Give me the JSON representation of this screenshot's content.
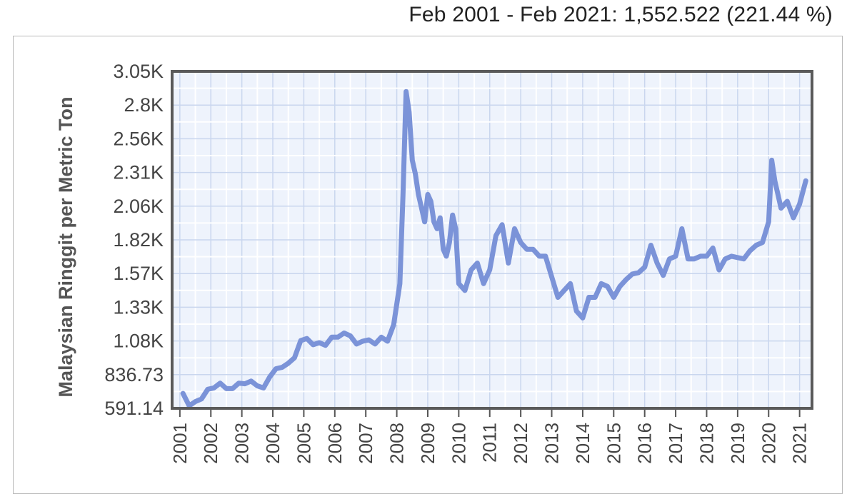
{
  "header": {
    "summary": "Feb 2001 - Feb 2021: 1,552.522 (221.44 %)"
  },
  "colors": {
    "line": "#7b93d8",
    "plot_background": "#eef3fc",
    "grid": "#ffffff",
    "frame": "#5a5a5a"
  },
  "chart_data": {
    "type": "line",
    "ylabel": "Malaysian Ringgit per Metric Ton",
    "xlabel": "",
    "y_tick_labels": [
      "591.14",
      "836.73",
      "1.08K",
      "1.33K",
      "1.57K",
      "1.82K",
      "2.06K",
      "2.31K",
      "2.56K",
      "2.8K",
      "3.05K"
    ],
    "y_tick_values": [
      591.14,
      836.73,
      1082.32,
      1327.91,
      1573.5,
      1819.09,
      2064.68,
      2310.27,
      2555.86,
      2801.45,
      3047.04
    ],
    "ylim": [
      591.14,
      3047.04
    ],
    "x_tick_labels": [
      "2001",
      "2002",
      "2003",
      "2004",
      "2005",
      "2006",
      "2007",
      "2008",
      "2009",
      "2010",
      "2011",
      "2012",
      "2013",
      "2014",
      "2015",
      "2016",
      "2017",
      "2018",
      "2019",
      "2020",
      "2021"
    ],
    "x_tick_values": [
      2001,
      2002,
      2003,
      2004,
      2005,
      2006,
      2007,
      2008,
      2009,
      2010,
      2011,
      2012,
      2013,
      2014,
      2015,
      2016,
      2017,
      2018,
      2019,
      2020,
      2021
    ],
    "xlim": [
      2000.75,
      2021.4
    ],
    "grid": true,
    "series": [
      {
        "x": [
          2001.1,
          2001.3,
          2001.5,
          2001.7,
          2001.9,
          2002.1,
          2002.3,
          2002.5,
          2002.7,
          2002.9,
          2003.1,
          2003.3,
          2003.5,
          2003.7,
          2003.9,
          2004.1,
          2004.3,
          2004.5,
          2004.7,
          2004.9,
          2005.1,
          2005.3,
          2005.5,
          2005.7,
          2005.9,
          2006.1,
          2006.3,
          2006.5,
          2006.7,
          2006.9,
          2007.1,
          2007.3,
          2007.5,
          2007.7,
          2007.9,
          2008.1,
          2008.2,
          2008.3,
          2008.4,
          2008.5,
          2008.6,
          2008.7,
          2008.8,
          2008.9,
          2009.0,
          2009.1,
          2009.2,
          2009.3,
          2009.4,
          2009.5,
          2009.6,
          2009.7,
          2009.8,
          2009.9,
          2010.0,
          2010.2,
          2010.4,
          2010.6,
          2010.8,
          2011.0,
          2011.2,
          2011.4,
          2011.6,
          2011.8,
          2012.0,
          2012.2,
          2012.4,
          2012.6,
          2012.8,
          2013.0,
          2013.2,
          2013.4,
          2013.6,
          2013.8,
          2014.0,
          2014.2,
          2014.4,
          2014.6,
          2014.8,
          2015.0,
          2015.2,
          2015.4,
          2015.6,
          2015.8,
          2016.0,
          2016.2,
          2016.4,
          2016.6,
          2016.8,
          2017.0,
          2017.2,
          2017.4,
          2017.6,
          2017.8,
          2018.0,
          2018.2,
          2018.4,
          2018.6,
          2018.8,
          2019.0,
          2019.2,
          2019.4,
          2019.6,
          2019.8,
          2020.0,
          2020.1,
          2020.2,
          2020.3,
          2020.4,
          2020.6,
          2020.8,
          2021.0,
          2021.2
        ],
        "values": [
          700,
          610,
          640,
          660,
          730,
          740,
          775,
          735,
          735,
          775,
          770,
          790,
          755,
          740,
          820,
          880,
          890,
          920,
          960,
          1085,
          1100,
          1055,
          1070,
          1050,
          1110,
          1110,
          1140,
          1120,
          1060,
          1080,
          1090,
          1060,
          1110,
          1080,
          1200,
          1500,
          2150,
          2900,
          2750,
          2400,
          2300,
          2150,
          2050,
          1950,
          2150,
          2100,
          1950,
          1900,
          1980,
          1750,
          1700,
          1800,
          2000,
          1900,
          1500,
          1450,
          1600,
          1650,
          1500,
          1600,
          1850,
          1930,
          1650,
          1900,
          1800,
          1750,
          1750,
          1700,
          1700,
          1550,
          1400,
          1450,
          1500,
          1300,
          1250,
          1400,
          1400,
          1500,
          1480,
          1400,
          1480,
          1530,
          1570,
          1580,
          1620,
          1780,
          1650,
          1560,
          1680,
          1700,
          1900,
          1680,
          1680,
          1700,
          1700,
          1760,
          1600,
          1680,
          1700,
          1690,
          1680,
          1740,
          1780,
          1800,
          1950,
          2400,
          2250,
          2150,
          2050,
          2100,
          1980,
          2080,
          2250
        ]
      }
    ]
  }
}
